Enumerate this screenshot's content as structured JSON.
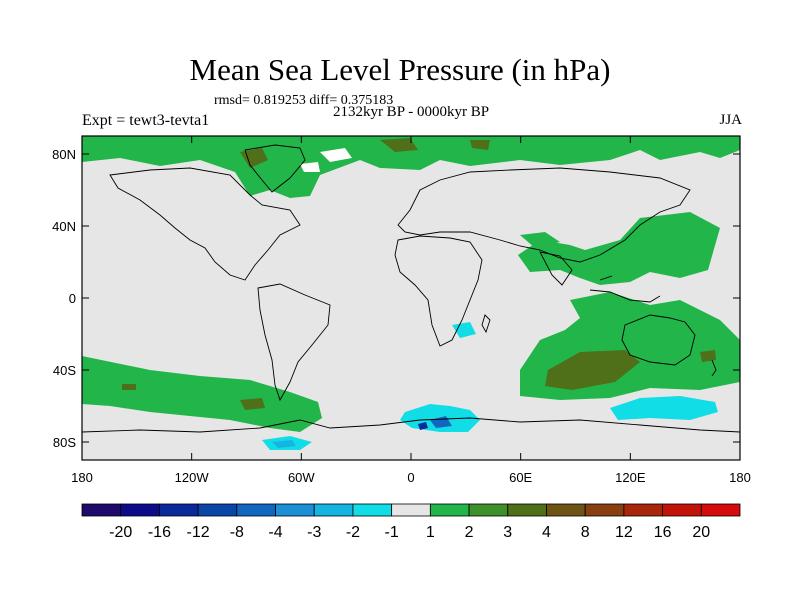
{
  "chart_data": {
    "type": "heatmap",
    "title": "Mean Sea Level Pressure (in hPa)",
    "stats_text": "rmsd= 0.819253 diff= 0.375183",
    "subtitle": "2132kyr BP - 0000kyr BP",
    "left_label": "Expt = tewt3-tevta1",
    "right_label": "JJA",
    "x_ticks": [
      "180",
      "120W",
      "60W",
      "0",
      "60E",
      "120E",
      "180"
    ],
    "y_ticks": [
      "80N",
      "40N",
      "0",
      "40S",
      "80S"
    ],
    "x_range": [
      -180,
      180
    ],
    "y_range": [
      -90,
      90
    ],
    "colorbar": {
      "labels": [
        "-20",
        "-16",
        "-12",
        "-8",
        "-4",
        "-3",
        "-2",
        "-1",
        "1",
        "2",
        "3",
        "4",
        "8",
        "12",
        "16",
        "20"
      ],
      "colors": [
        "#1d0a6b",
        "#0c0c8a",
        "#0a2a9c",
        "#0a45a8",
        "#1167bf",
        "#1d8fd4",
        "#16b4e0",
        "#10dde5",
        "#e6e6e6",
        "#22b54a",
        "#3f8f2a",
        "#4f6f18",
        "#6d5314",
        "#8a3f10",
        "#a8270c",
        "#c4140a",
        "#d60c0c"
      ]
    },
    "regions": [
      {
        "name": "arctic-positive",
        "level": "1 to 2",
        "lon_range": [
          -180,
          180
        ],
        "lat_range": [
          68,
          90
        ]
      },
      {
        "name": "greenland-positive",
        "level": "2 to 3",
        "lon_range": [
          -62,
          -25
        ],
        "lat_range": [
          60,
          82
        ]
      },
      {
        "name": "east-asia-positive",
        "level": "1 to 2",
        "lon_range": [
          100,
          155
        ],
        "lat_range": [
          20,
          50
        ]
      },
      {
        "name": "south-indian-ocean-positive",
        "level": "3 to 4",
        "lon_range": [
          40,
          180
        ],
        "lat_range": [
          -70,
          -5
        ]
      },
      {
        "name": "south-pacific-positive",
        "level": "1 to 2",
        "lon_range": [
          -180,
          -50
        ],
        "lat_range": [
          -75,
          -40
        ]
      },
      {
        "name": "africa-negative",
        "level": "-2 to -1",
        "lon_range": [
          25,
          35
        ],
        "lat_range": [
          -24,
          -14
        ]
      },
      {
        "name": "antarctic-negative",
        "level": "-4 to -1",
        "lon_range": [
          0,
          60
        ],
        "lat_range": [
          -78,
          -60
        ]
      },
      {
        "name": "south-australia-negative",
        "level": "-2 to -1",
        "lon_range": [
          100,
          165
        ],
        "lat_range": [
          -72,
          -55
        ]
      },
      {
        "name": "weddell-negative",
        "level": "-2 to -1",
        "lon_range": [
          -80,
          -50
        ],
        "lat_range": [
          -90,
          -82
        ]
      }
    ]
  }
}
